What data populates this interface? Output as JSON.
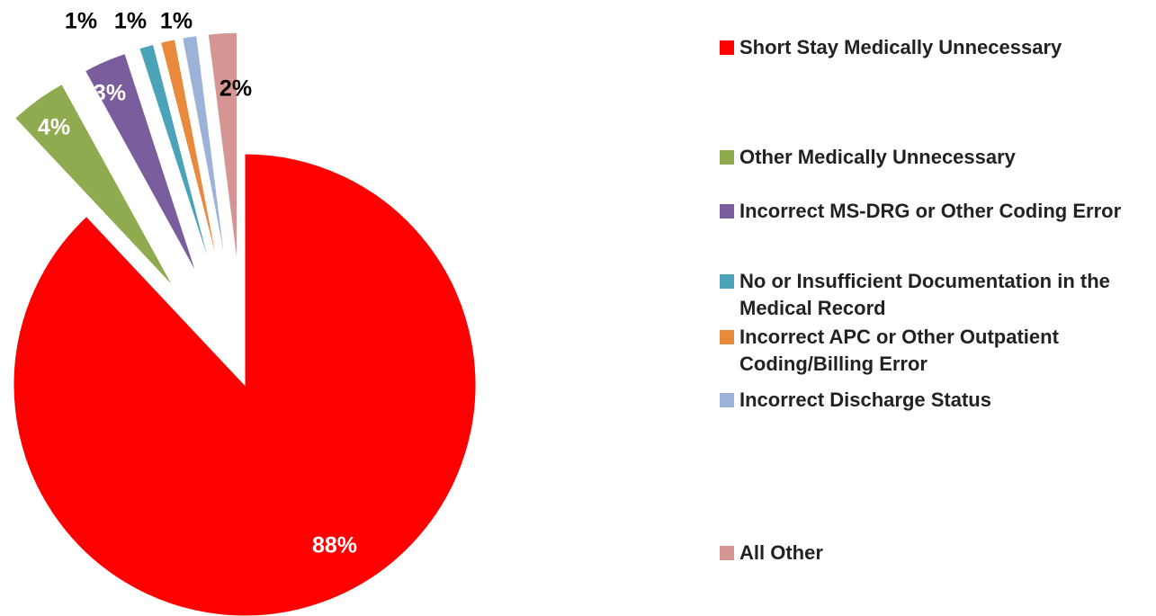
{
  "chart_data": {
    "type": "pie",
    "categories": [
      "Short Stay Medically Unnecessary",
      "Other Medically Unnecessary",
      "Incorrect MS-DRG or Other Coding Error",
      "No or Insufficient Documentation in the Medical Record",
      "Incorrect APC or Other Outpatient Coding/Billing Error",
      "Incorrect Discharge Status",
      "All Other"
    ],
    "values": [
      88,
      4,
      3,
      1,
      1,
      1,
      2
    ],
    "value_labels": [
      "88%",
      "4%",
      "3%",
      "1%",
      "1%",
      "1%",
      "2%"
    ],
    "colors": [
      "#ff0000",
      "#8faa4f",
      "#7a5d9c",
      "#4aa3b8",
      "#e8893c",
      "#9db2d8",
      "#d59593"
    ],
    "legend": "right"
  }
}
